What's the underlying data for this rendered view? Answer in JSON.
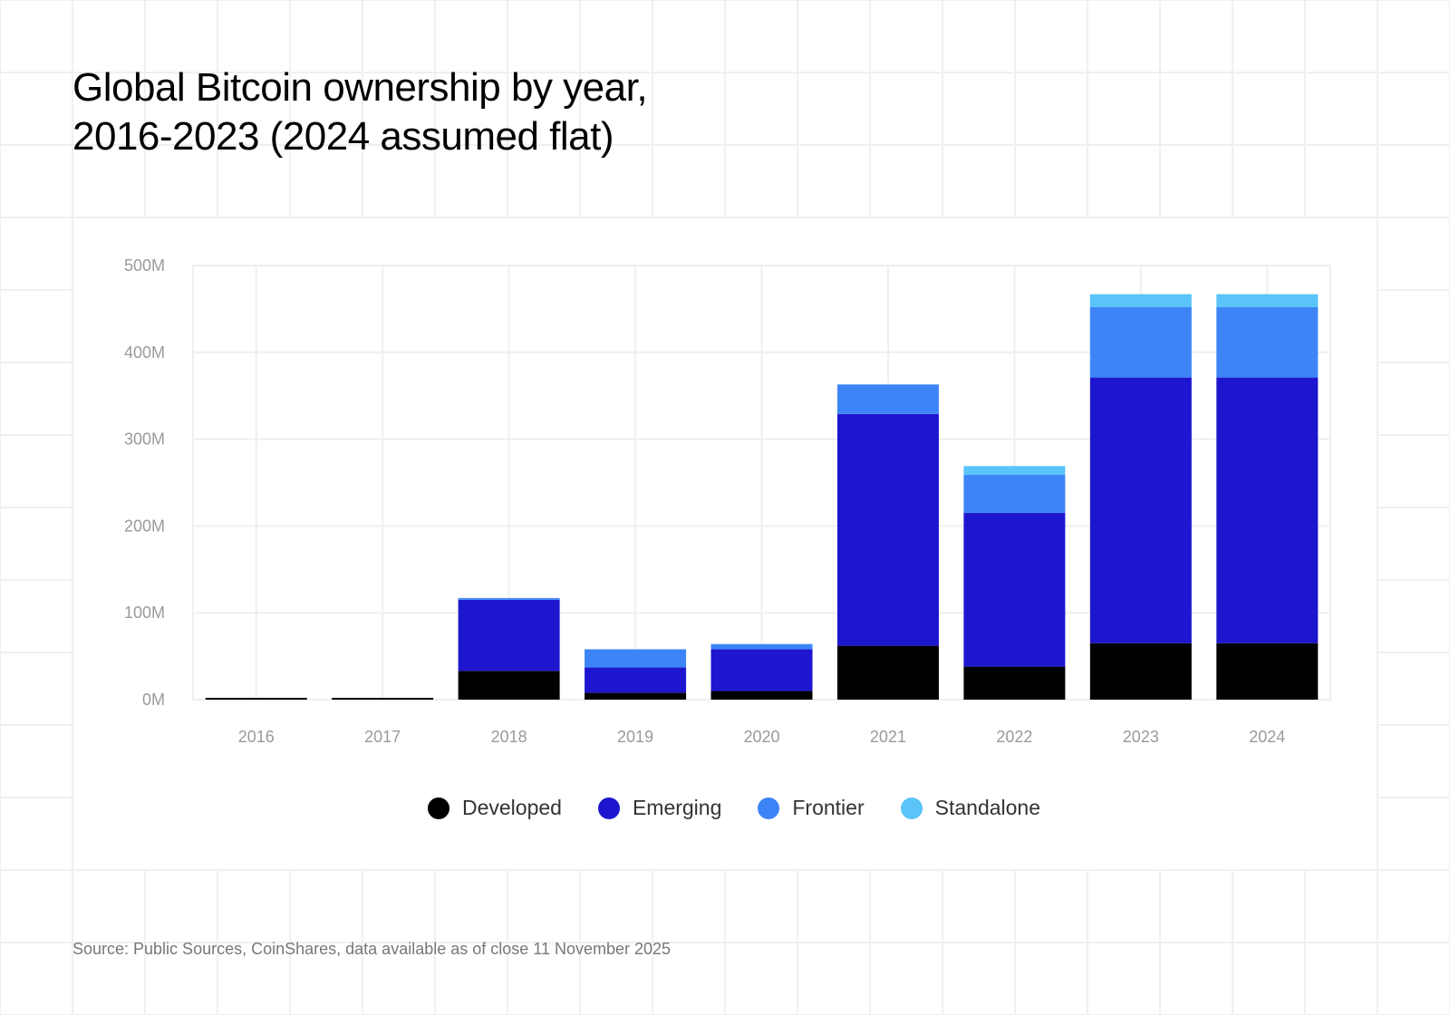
{
  "title": {
    "line1": "Global Bitcoin ownership by year,",
    "line2": "2016-2023 (2024 assumed flat)"
  },
  "source": "Source: Public Sources, CoinShares, data available as of close 11 November 2025",
  "colors": {
    "Developed": "#000000",
    "Emerging": "#1E16CF",
    "Frontier": "#3D85F7",
    "Standalone": "#5AC3F7",
    "grid": "#EFEFEF",
    "tick_label": "#9A9A9A"
  },
  "legend": [
    {
      "label": "Developed"
    },
    {
      "label": "Emerging"
    },
    {
      "label": "Frontier"
    },
    {
      "label": "Standalone"
    }
  ],
  "chart_data": {
    "type": "bar",
    "stacked": true,
    "title": "Global Bitcoin ownership by year, 2016-2023 (2024 assumed flat)",
    "xlabel": "",
    "ylabel": "",
    "unit": "millions of owners",
    "categories": [
      "2016",
      "2017",
      "2018",
      "2019",
      "2020",
      "2021",
      "2022",
      "2023",
      "2024"
    ],
    "series": [
      {
        "name": "Developed",
        "values": [
          2,
          2,
          33,
          8,
          10,
          62,
          38,
          65,
          65
        ]
      },
      {
        "name": "Emerging",
        "values": [
          0,
          0,
          82,
          29,
          48,
          267,
          177,
          306,
          306
        ]
      },
      {
        "name": "Frontier",
        "values": [
          0,
          0,
          2,
          21,
          6,
          34,
          44,
          81,
          81
        ]
      },
      {
        "name": "Standalone",
        "values": [
          0,
          0,
          0,
          0,
          0,
          0,
          10,
          15,
          15
        ]
      }
    ],
    "ylim": [
      0,
      500
    ],
    "yticks": [
      0,
      100,
      200,
      300,
      400,
      500
    ],
    "ytick_labels": [
      "0M",
      "100M",
      "200M",
      "300M",
      "400M",
      "500M"
    ],
    "grid": true,
    "legend_position": "bottom-center"
  }
}
